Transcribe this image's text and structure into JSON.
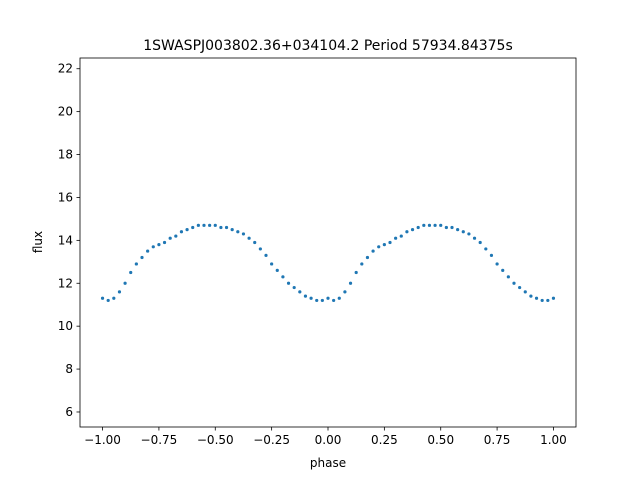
{
  "chart_data": {
    "type": "scatter",
    "title": "1SWASPJ003802.36+034104.2 Period 57934.84375s",
    "xlabel": "phase",
    "ylabel": "flux",
    "xlim": [
      -1.1,
      1.1
    ],
    "ylim": [
      5.3,
      22.5
    ],
    "x_ticks": [
      -1.0,
      -0.75,
      -0.5,
      -0.25,
      0.0,
      0.25,
      0.5,
      0.75,
      1.0
    ],
    "x_tick_labels": [
      "−1.00",
      "−0.75",
      "−0.50",
      "−0.25",
      "0.00",
      "0.25",
      "0.50",
      "0.75",
      "1.00"
    ],
    "y_ticks": [
      6,
      8,
      10,
      12,
      14,
      16,
      18,
      20,
      22
    ],
    "y_tick_labels": [
      "6",
      "8",
      "10",
      "12",
      "14",
      "16",
      "18",
      "20",
      "22"
    ],
    "grid": false,
    "point_color": "#1f77b4",
    "series": [
      {
        "x": [
          -1.0,
          -0.975,
          -0.95,
          -0.925,
          -0.9,
          -0.875,
          -0.85,
          -0.825,
          -0.8,
          -0.775,
          -0.75,
          -0.725,
          -0.7,
          -0.675,
          -0.65,
          -0.625,
          -0.6,
          -0.575,
          -0.55,
          -0.525,
          -0.5,
          -0.475,
          -0.45,
          -0.425,
          -0.4,
          -0.375,
          -0.35,
          -0.325,
          -0.3,
          -0.275,
          -0.25,
          -0.225,
          -0.2,
          -0.175,
          -0.15,
          -0.125,
          -0.1,
          -0.075,
          -0.05,
          -0.025,
          0.0,
          0.025,
          0.05,
          0.075,
          0.1,
          0.125,
          0.15,
          0.175,
          0.2,
          0.225,
          0.25,
          0.275,
          0.3,
          0.325,
          0.35,
          0.375,
          0.4,
          0.425,
          0.45,
          0.475,
          0.5,
          0.525,
          0.55,
          0.575,
          0.6,
          0.625,
          0.65,
          0.675,
          0.7,
          0.725,
          0.75,
          0.775,
          0.8,
          0.825,
          0.85,
          0.875,
          0.9,
          0.925,
          0.95,
          0.975,
          1.0
        ],
        "y": [
          11.3,
          11.2,
          11.3,
          11.6,
          12.0,
          12.5,
          12.9,
          13.2,
          13.5,
          13.7,
          13.8,
          13.9,
          14.1,
          14.2,
          14.4,
          14.5,
          14.6,
          14.7,
          14.7,
          14.7,
          14.7,
          14.6,
          14.6,
          14.5,
          14.4,
          14.3,
          14.1,
          13.9,
          13.6,
          13.3,
          12.9,
          12.6,
          12.3,
          12.0,
          11.8,
          11.6,
          11.4,
          11.3,
          11.2,
          11.2,
          11.3,
          11.2,
          11.3,
          11.6,
          12.0,
          12.5,
          12.9,
          13.2,
          13.5,
          13.7,
          13.8,
          13.9,
          14.1,
          14.2,
          14.4,
          14.5,
          14.6,
          14.7,
          14.7,
          14.7,
          14.7,
          14.6,
          14.6,
          14.5,
          14.4,
          14.3,
          14.1,
          13.9,
          13.6,
          13.3,
          12.9,
          12.6,
          12.3,
          12.0,
          11.8,
          11.6,
          11.4,
          11.3,
          11.2,
          11.2,
          11.3
        ]
      }
    ]
  }
}
